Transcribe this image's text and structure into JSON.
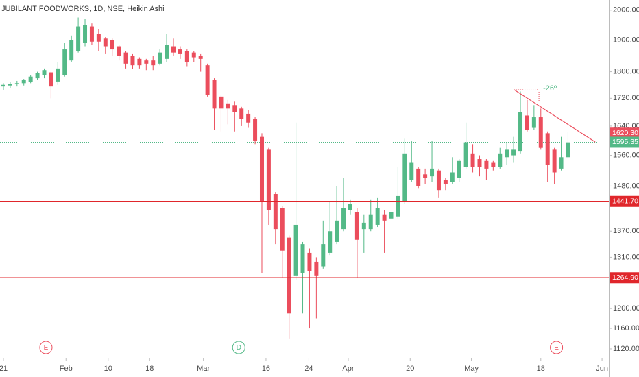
{
  "chart_data": {
    "type": "candlestick",
    "title": "JUBILANT FOODWORKS, 1D, NSE, Heikin Ashi",
    "log_scale": true,
    "up_color": "#53b987",
    "down_color": "#eb4d5c",
    "x": [
      0,
      1,
      2,
      3,
      4,
      5,
      6,
      7,
      8,
      9,
      10,
      11,
      12,
      13,
      14,
      15,
      16,
      17,
      18,
      19,
      20,
      21,
      22,
      23,
      24,
      25,
      26,
      27,
      28,
      29,
      30,
      31,
      32,
      33,
      34,
      35,
      36,
      37,
      38,
      39,
      40,
      41,
      42,
      43,
      44,
      45,
      46,
      47,
      48,
      49,
      50,
      51,
      52,
      53,
      54,
      55,
      56,
      57,
      58,
      59,
      60,
      61,
      62,
      63,
      64,
      65,
      66,
      67,
      68,
      69,
      70,
      71,
      72,
      73,
      74,
      75,
      76,
      77,
      78,
      79,
      80,
      81,
      82,
      83
    ],
    "open": [
      1755,
      1758,
      1762,
      1765,
      1768,
      1780,
      1790,
      1798,
      1770,
      1790,
      1835,
      1865,
      1890,
      1945,
      1920,
      1905,
      1900,
      1880,
      1860,
      1850,
      1840,
      1835,
      1835,
      1825,
      1840,
      1880,
      1870,
      1865,
      1860,
      1850,
      1820,
      1775,
      1725,
      1705,
      1700,
      1690,
      1675,
      1660,
      1610,
      1575,
      1460,
      1425,
      1355,
      1270,
      1275,
      1320,
      1300,
      1290,
      1320,
      1345,
      1375,
      1420,
      1415,
      1375,
      1375,
      1385,
      1410,
      1400,
      1405,
      1440,
      1495,
      1525,
      1510,
      1505,
      1520,
      1495,
      1490,
      1500,
      1530,
      1565,
      1550,
      1545,
      1540,
      1530,
      1555,
      1560,
      1570,
      1670,
      1635,
      1665,
      1620,
      1575,
      1525,
      1555
    ],
    "high": [
      1765,
      1768,
      1772,
      1778,
      1790,
      1800,
      1810,
      1800,
      1830,
      1890,
      1915,
      1975,
      1970,
      1955,
      1935,
      1910,
      1905,
      1885,
      1865,
      1855,
      1845,
      1840,
      1850,
      1870,
      1920,
      1905,
      1880,
      1870,
      1865,
      1855,
      1825,
      1780,
      1730,
      1715,
      1710,
      1695,
      1685,
      1665,
      1620,
      1580,
      1465,
      1430,
      1360,
      1650,
      1345,
      1330,
      1310,
      1395,
      1440,
      1480,
      1500,
      1445,
      1425,
      1410,
      1445,
      1450,
      1420,
      1430,
      1530,
      1605,
      1600,
      1530,
      1525,
      1600,
      1525,
      1500,
      1555,
      1550,
      1650,
      1590,
      1560,
      1550,
      1545,
      1580,
      1595,
      1610,
      1740,
      1715,
      1700,
      1690,
      1625,
      1580,
      1610,
      1625
    ],
    "low": [
      1745,
      1750,
      1755,
      1758,
      1765,
      1775,
      1780,
      1720,
      1760,
      1785,
      1830,
      1860,
      1880,
      1885,
      1865,
      1855,
      1850,
      1835,
      1810,
      1808,
      1810,
      1805,
      1805,
      1820,
      1830,
      1850,
      1840,
      1815,
      1830,
      1800,
      1725,
      1630,
      1625,
      1645,
      1625,
      1640,
      1635,
      1590,
      1275,
      1385,
      1340,
      1265,
      1140,
      1260,
      1190,
      1160,
      1180,
      1285,
      1315,
      1340,
      1370,
      1410,
      1265,
      1320,
      1370,
      1380,
      1320,
      1345,
      1400,
      1435,
      1490,
      1475,
      1485,
      1490,
      1450,
      1470,
      1485,
      1490,
      1525,
      1515,
      1505,
      1495,
      1520,
      1525,
      1535,
      1540,
      1565,
      1625,
      1630,
      1575,
      1490,
      1485,
      1520,
      1550
    ],
    "close": [
      1760,
      1762,
      1765,
      1775,
      1785,
      1795,
      1805,
      1755,
      1810,
      1870,
      1900,
      1945,
      1950,
      1895,
      1895,
      1880,
      1870,
      1850,
      1825,
      1820,
      1820,
      1825,
      1820,
      1860,
      1885,
      1860,
      1855,
      1830,
      1845,
      1840,
      1730,
      1690,
      1690,
      1690,
      1680,
      1660,
      1650,
      1600,
      1440,
      1420,
      1375,
      1325,
      1190,
      1385,
      1340,
      1280,
      1270,
      1340,
      1370,
      1395,
      1425,
      1435,
      1350,
      1390,
      1410,
      1425,
      1395,
      1415,
      1455,
      1565,
      1540,
      1480,
      1500,
      1525,
      1470,
      1485,
      1515,
      1545,
      1595,
      1530,
      1530,
      1525,
      1530,
      1565,
      1575,
      1575,
      1680,
      1630,
      1665,
      1580,
      1535,
      1515,
      1555,
      1595
    ],
    "xlim": [
      -0.5,
      89.0
    ],
    "xticks": [
      {
        "value": 0,
        "label": "21"
      },
      {
        "value": 9.2,
        "label": "Feb"
      },
      {
        "value": 15.4,
        "label": "10"
      },
      {
        "value": 21.5,
        "label": "18"
      },
      {
        "value": 29.4,
        "label": "Mar"
      },
      {
        "value": 38.6,
        "label": "16"
      },
      {
        "value": 44.9,
        "label": "24"
      },
      {
        "value": 50.7,
        "label": "Apr"
      },
      {
        "value": 59.8,
        "label": "20"
      },
      {
        "value": 68.8,
        "label": "May"
      },
      {
        "value": 79.0,
        "label": "18"
      },
      {
        "value": 88.0,
        "label": "Jun"
      }
    ],
    "ylim": [
      1103,
      2035
    ],
    "yticks": [
      {
        "value": 2000,
        "label": "2000.00"
      },
      {
        "value": 1900,
        "label": "1900.00"
      },
      {
        "value": 1800,
        "label": "1800.00"
      },
      {
        "value": 1720,
        "label": "1720.00"
      },
      {
        "value": 1640,
        "label": "1640.00"
      },
      {
        "value": 1560,
        "label": "1560.00"
      },
      {
        "value": 1480,
        "label": "1480.00"
      },
      {
        "value": 1370,
        "label": "1370.00"
      },
      {
        "value": 1310,
        "label": "1310.00"
      },
      {
        "value": 1200,
        "label": "1200.00"
      },
      {
        "value": 1160,
        "label": "1160.00"
      },
      {
        "value": 1120,
        "label": "1120.00"
      }
    ],
    "horizontal_lines": [
      {
        "value": 1441.7,
        "label": "1441.70",
        "color": "#e0262b"
      },
      {
        "value": 1264.9,
        "label": "1264.90",
        "color": "#e0262b"
      }
    ],
    "price_labels": [
      {
        "value": 1620.3,
        "label": "1620.30",
        "color": "#eb4d5c"
      },
      {
        "value": 1595.35,
        "label": "1595.35",
        "color": "#53b987"
      }
    ],
    "trendline": {
      "x": [
        75.1,
        87.0
      ],
      "y": [
        1745,
        1596
      ],
      "color": "#eb4d5c",
      "label": "-26º"
    },
    "events": [
      {
        "x": 6.25,
        "label": "E",
        "color": "#eb4d5c"
      },
      {
        "x": 34.6,
        "label": "D",
        "color": "#53b987"
      },
      {
        "x": 81.3,
        "label": "E",
        "color": "#eb4d5c"
      }
    ]
  }
}
